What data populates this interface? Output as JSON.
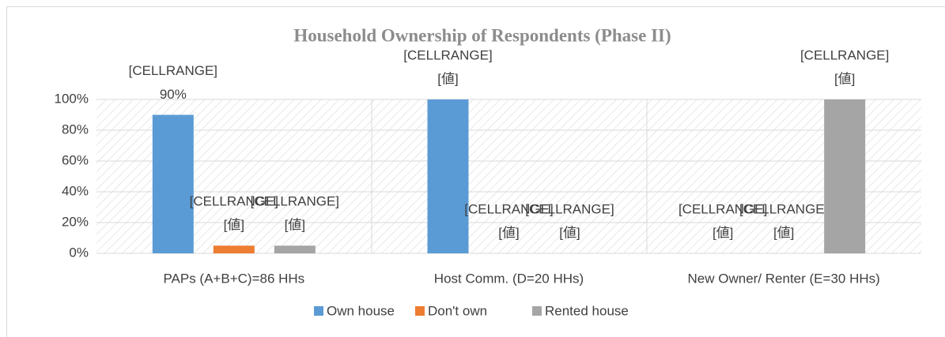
{
  "chart_data": {
    "type": "bar",
    "title": "Household Ownership of Respondents (Phase II)",
    "categories": [
      "PAPs (A+B+C)=86 HHs",
      "Host Comm. (D=20 HHs)",
      "New Owner/ Renter (E=30 HHs)"
    ],
    "series": [
      {
        "name": "Own house",
        "color": "#5b9bd5",
        "values": [
          90,
          100,
          0
        ],
        "value_labels": [
          [
            "[CELLRANGE]",
            "90%"
          ],
          [
            "[CELLRANGE]",
            "[値]"
          ],
          [
            "[CELLRANGE]",
            "[値]"
          ]
        ]
      },
      {
        "name": "Don't own",
        "color": "#ed7d31",
        "values": [
          5,
          0,
          0
        ],
        "value_labels": [
          [
            "[CELLRANGE]",
            "[値]"
          ],
          [
            "[CELLRANGE]",
            "[値]"
          ],
          [
            "[CELLRANGE]",
            "[値]"
          ]
        ]
      },
      {
        "name": "Rented house",
        "color": "#a5a5a5",
        "values": [
          5,
          0,
          100
        ],
        "value_labels": [
          [
            "[CELLRANGE]",
            "[値]"
          ],
          [
            "[CELLRANGE]",
            "[値]"
          ],
          [
            "[CELLRANGE]",
            "[値]"
          ]
        ]
      }
    ],
    "ylim": [
      0,
      100
    ],
    "yticks": [
      {
        "value": 0,
        "label": "0%"
      },
      {
        "value": 20,
        "label": "20%"
      },
      {
        "value": 40,
        "label": "40%"
      },
      {
        "value": 60,
        "label": "60%"
      },
      {
        "value": 80,
        "label": "80%"
      },
      {
        "value": 100,
        "label": "100%"
      }
    ],
    "grid": true,
    "legend": "bottom"
  }
}
